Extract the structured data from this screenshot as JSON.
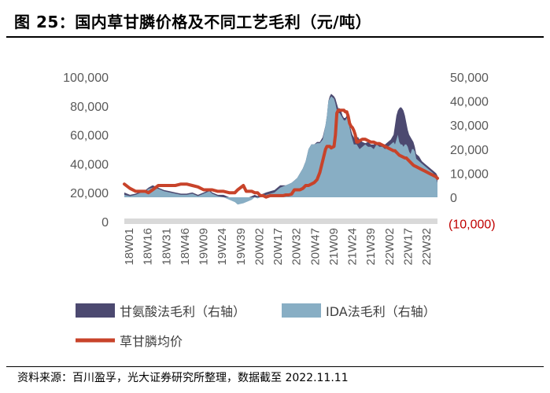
{
  "title": "图 25：国内草甘膦价格及不同工艺毛利（元/吨）",
  "source": "资料来源：百川盈孚，光大证券研究所整理，数据截至 2022.11.11",
  "colors": {
    "glycine": "#4c4970",
    "ida": "#88aec4",
    "price": "#c8432a",
    "zero_band": "#d9d9d9",
    "tick": "#595959",
    "negative_tick": "#c00000"
  },
  "chart_data": {
    "type": "area",
    "title": "国内草甘膦价格及不同工艺毛利（元/吨）",
    "left_axis": {
      "range": [
        0,
        100000
      ],
      "ticks": [
        "0",
        "20,000",
        "40,000",
        "60,000",
        "80,000",
        "100,000"
      ]
    },
    "right_axis": {
      "range": [
        -10000,
        50000
      ],
      "ticks": [
        "(10,000)",
        "0",
        "10,000",
        "20,000",
        "30,000",
        "40,000",
        "50,000"
      ]
    },
    "categories": [
      "18W01",
      "18W16",
      "18W31",
      "18W46",
      "19W09",
      "19W24",
      "19W39",
      "20W02",
      "20W17",
      "20W32",
      "20W47",
      "21W09",
      "21W24",
      "21W39",
      "22W02",
      "22W17",
      "22W32"
    ],
    "x": [
      0,
      4,
      8,
      12,
      15,
      17,
      20,
      24,
      28,
      32,
      36,
      40,
      44,
      48,
      52,
      56,
      60,
      62,
      66,
      70,
      74,
      78,
      80,
      84,
      86,
      88,
      90,
      92,
      94,
      96,
      98,
      100,
      103,
      106,
      108,
      110,
      112,
      114,
      116,
      118,
      120,
      122,
      124,
      126,
      128,
      130,
      132,
      134,
      136,
      138,
      140,
      142,
      143,
      144,
      145,
      146,
      148,
      149,
      150,
      151,
      152,
      153,
      154,
      155,
      156,
      157,
      158,
      159,
      160,
      161,
      162,
      163,
      164,
      165,
      166,
      168,
      170,
      172,
      174,
      176,
      178,
      180,
      182,
      184,
      186,
      188,
      190,
      191,
      192,
      193,
      194,
      195,
      196,
      197,
      198,
      199,
      200,
      201,
      202,
      203,
      204,
      205,
      206,
      208,
      210,
      212,
      214,
      216,
      218,
      220,
      221
    ],
    "series": [
      {
        "name": "甘氨酸法毛利（右轴）",
        "axis": "right",
        "values": [
          2000,
          1000,
          1500,
          2500,
          3000,
          4000,
          5000,
          4000,
          3000,
          2500,
          2000,
          1500,
          1500,
          2000,
          1000,
          2000,
          3000,
          2000,
          1000,
          1000,
          0,
          -1000,
          -1500,
          -1000,
          -500,
          0,
          500,
          1000,
          500,
          1000,
          1500,
          2000,
          2500,
          3000,
          4000,
          5000,
          5000,
          5000,
          5500,
          6000,
          7000,
          8000,
          10000,
          12000,
          15000,
          20000,
          22000,
          22000,
          23000,
          23000,
          25000,
          30000,
          34000,
          40000,
          42000,
          43000,
          42000,
          41000,
          39000,
          37000,
          37000,
          36000,
          34000,
          33000,
          33000,
          34000,
          33000,
          30000,
          28000,
          26000,
          25000,
          24000,
          25000,
          25000,
          24000,
          23000,
          22500,
          23000,
          22000,
          22000,
          23000,
          22000,
          22000,
          22000,
          23000,
          24000,
          26000,
          30000,
          34000,
          36000,
          37000,
          37500,
          37000,
          36000,
          34000,
          31000,
          28000,
          26000,
          25000,
          24000,
          23000,
          21000,
          18000,
          17000,
          15000,
          14000,
          13000,
          12000,
          11000,
          10000,
          9000
        ]
      },
      {
        "name": "IDA法毛利（右轴）",
        "axis": "right",
        "values": [
          1000,
          500,
          1000,
          2000,
          2500,
          3500,
          4000,
          3500,
          2500,
          2000,
          1500,
          1000,
          1000,
          1500,
          500,
          1500,
          2500,
          1500,
          500,
          0,
          -1000,
          -2000,
          -3000,
          -2500,
          -2000,
          -1500,
          -1000,
          0,
          -500,
          0,
          500,
          1000,
          1500,
          2000,
          3000,
          4000,
          4500,
          5000,
          5500,
          6000,
          7000,
          8000,
          10000,
          12000,
          15000,
          20000,
          22000,
          22000,
          22500,
          22500,
          24000,
          30000,
          34000,
          40000,
          41000,
          42000,
          41000,
          39000,
          36000,
          35000,
          35000,
          34000,
          33000,
          32000,
          32000,
          33000,
          32000,
          29000,
          26000,
          24000,
          22000,
          22000,
          22000,
          21000,
          20000,
          21000,
          22000,
          21000,
          21000,
          20000,
          22000,
          21000,
          21000,
          20000,
          21000,
          22000,
          23000,
          22000,
          24000,
          26000,
          23000,
          22000,
          22000,
          21000,
          22000,
          22000,
          21000,
          19000,
          18000,
          20000,
          20000,
          19000,
          16000,
          15000,
          14000,
          13000,
          12000,
          11000,
          10000,
          8000,
          6000
        ]
      },
      {
        "name": "草甘膦均价",
        "axis": "left",
        "values": [
          26000,
          23000,
          21000,
          21000,
          21000,
          20000,
          22000,
          25000,
          25000,
          25000,
          25000,
          26000,
          26000,
          25000,
          24000,
          22000,
          22000,
          22000,
          21000,
          21000,
          20000,
          20000,
          22000,
          25000,
          21000,
          21000,
          21000,
          20000,
          20000,
          18000,
          18000,
          17000,
          18000,
          18000,
          18000,
          18000,
          18000,
          18500,
          18500,
          19000,
          22000,
          22000,
          22000,
          23000,
          25000,
          25000,
          26000,
          27000,
          29000,
          34000,
          42000,
          50000,
          52000,
          52000,
          52000,
          51000,
          52000,
          60000,
          75000,
          77000,
          77000,
          77000,
          77000,
          77000,
          76000,
          76000,
          73000,
          68000,
          66000,
          65000,
          63000,
          60000,
          55000,
          55000,
          56000,
          57000,
          57000,
          56000,
          55000,
          55000,
          54000,
          54000,
          53000,
          52000,
          51000,
          50000,
          49000,
          49000,
          48000,
          47000,
          46000,
          45500,
          45000,
          44500,
          44000,
          44000,
          43000,
          42000,
          41000,
          40000,
          39000,
          38500,
          38000,
          37000,
          36000,
          35000,
          34000,
          33000,
          32000,
          31000,
          30000
        ]
      }
    ],
    "legend": [
      "甘氨酸法毛利（右轴）",
      "IDA法毛利（右轴）",
      "草甘膦均价"
    ],
    "legend_position": "bottom"
  }
}
